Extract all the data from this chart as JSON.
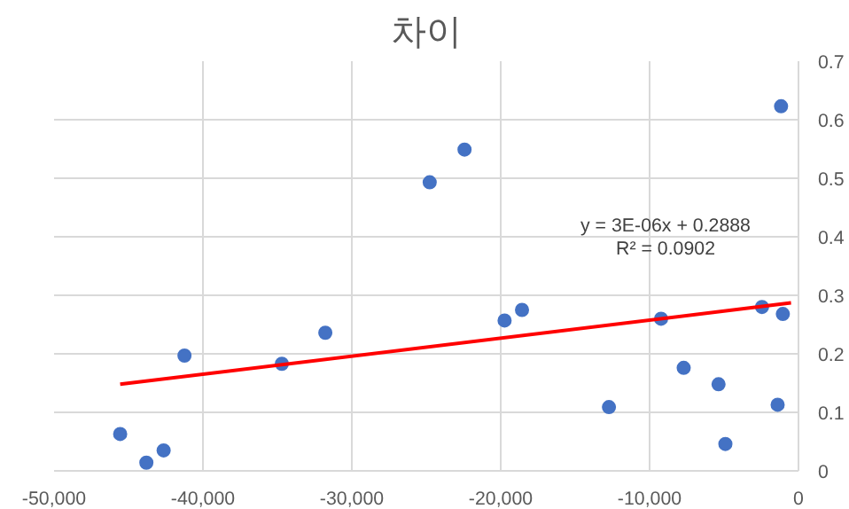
{
  "chart_data": {
    "type": "scatter",
    "title": "차이",
    "x": [
      -45560,
      -43800,
      -42640,
      -41240,
      -34700,
      -31780,
      -24770,
      -22430,
      -19740,
      -18570,
      -12730,
      -9230,
      -7710,
      -5370,
      -4910,
      -2450,
      -1400,
      -1170,
      -1050
    ],
    "values": [
      0.063,
      0.014,
      0.035,
      0.197,
      0.183,
      0.236,
      0.493,
      0.549,
      0.257,
      0.275,
      0.109,
      0.26,
      0.176,
      0.148,
      0.046,
      0.28,
      0.113,
      0.623,
      0.268
    ],
    "color": "#4472c4",
    "marker": "circle",
    "series": [
      {
        "type": "line",
        "color": "#ff0000",
        "marker": "none",
        "x": [
          -45560,
          -500
        ],
        "values": [
          0.148,
          0.287
        ]
      }
    ],
    "annotations": [
      "y = 3E-06x + 0.2888",
      "R² = 0.0902"
    ],
    "xlim": [
      -50000,
      0
    ],
    "xticks": [
      {
        "value": -50000,
        "label": "-50,000"
      },
      {
        "value": -40000,
        "label": "-40,000"
      },
      {
        "value": -30000,
        "label": "-30,000"
      },
      {
        "value": -20000,
        "label": "-20,000"
      },
      {
        "value": -10000,
        "label": "-10,000"
      },
      0
    ],
    "ylim": [
      0,
      0.7
    ],
    "yticks": [
      0,
      0.1,
      0.2,
      0.3,
      0.4,
      0.5,
      0.6,
      0.7
    ],
    "grid": true
  }
}
